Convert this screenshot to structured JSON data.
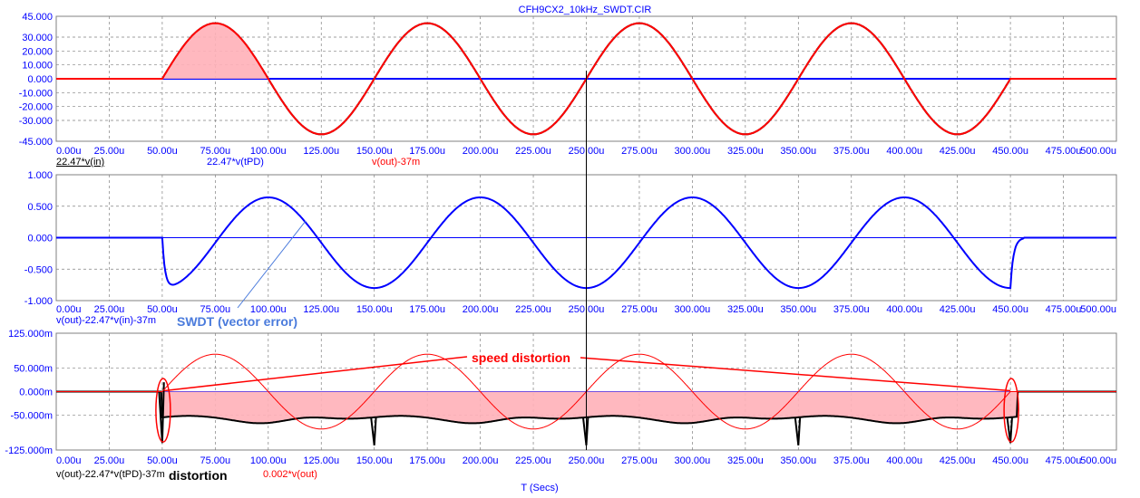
{
  "window": {
    "title": "CFH9CX2_10kHz_SWDT.CIR"
  },
  "x_axis": {
    "label": "T (Secs)",
    "ticks": [
      "0.00u",
      "25.00u",
      "50.00u",
      "75.00u",
      "100.00u",
      "125.00u",
      "150.00u",
      "175.00u",
      "200.00u",
      "225.00u",
      "250.00u",
      "275.00u",
      "300.00u",
      "325.00u",
      "350.00u",
      "375.00u",
      "400.00u",
      "425.00u",
      "450.00u",
      "475.00u",
      "500.00u"
    ]
  },
  "cursor": {
    "x": 250
  },
  "chart_data": [
    {
      "type": "line",
      "xlim": [
        0,
        500
      ],
      "ylim": [
        -45,
        45
      ],
      "y_ticks": [
        "45.000",
        "30.000",
        "20.000",
        "10.000",
        "0.000",
        "-10.000",
        "-20.000",
        "-30.000",
        "-45.000"
      ],
      "legend": [
        "22.47*v(in)",
        "22.47*v(tPD)",
        "v(out)-37m"
      ],
      "series": [
        {
          "name": "22.47*v(in)",
          "color": "#000000",
          "signal": "sine",
          "amplitude": 40,
          "start": 50,
          "end": 450,
          "period": 100,
          "fill": false
        },
        {
          "name": "22.47*v(tPD)",
          "color": "#0000ff",
          "signal": "zero",
          "fill": false
        },
        {
          "name": "v(out)-37m",
          "color": "#ff0000",
          "signal": "sine",
          "amplitude": 40,
          "start": 50,
          "end": 450,
          "period": 100,
          "fill": true,
          "fill_range": [
            50,
            100
          ]
        }
      ]
    },
    {
      "type": "line",
      "xlim": [
        0,
        500
      ],
      "ylim": [
        -1,
        1
      ],
      "y_ticks": [
        "1.000",
        "0.500",
        "0.000",
        "-0.500",
        "-1.000"
      ],
      "legend": [
        "v(out)-22.47*v(in)-37m"
      ],
      "series": [
        {
          "name": "v(out)-22.47*v(in)-37m",
          "color": "#0000ff",
          "signal": "vector_error",
          "amplitude": 0.72,
          "offset": -0.08,
          "start": 50,
          "end": 450
        }
      ],
      "annotation": {
        "text": "SWDT (vector error)",
        "color": "#4a7bdc",
        "points_to": [
          120,
          0.45
        ]
      }
    },
    {
      "type": "line",
      "xlim": [
        0,
        500
      ],
      "ylim": [
        -125,
        125
      ],
      "y_ticks": [
        "125.000m",
        "50.000m",
        "0.000m",
        "-50.000m",
        "-125.000m"
      ],
      "legend": [
        "v(out)-22.47*v(tPD)-37m",
        "0.002*v(out)"
      ],
      "extra_label": "distortion",
      "series": [
        {
          "name": "v(out)-22.47*v(tPD)-37m",
          "color": "#000000",
          "signal": "distortion",
          "level": -55,
          "start": 50,
          "end": 450,
          "spikes": [
            50,
            150,
            250,
            350,
            450
          ],
          "fill": true
        },
        {
          "name": "0.002*v(out)",
          "color": "#ff0000",
          "signal": "sine",
          "amplitude": 80,
          "start": 50,
          "end": 450,
          "period": 100,
          "fill": false
        }
      ],
      "annotation": {
        "text": "speed distortion",
        "color": "#ff0000"
      },
      "ellipses_at": [
        50,
        450
      ]
    }
  ]
}
